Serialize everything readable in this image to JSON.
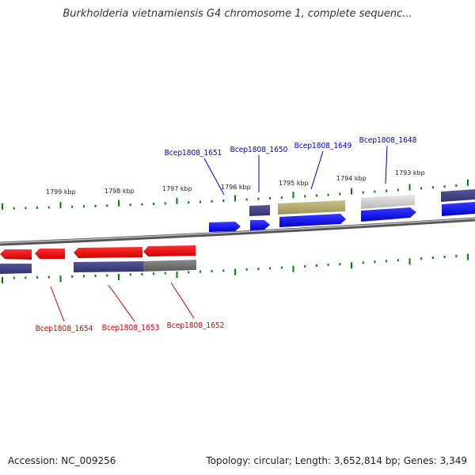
{
  "title": "Burkholderia vietnamiensis G4 chromosome 1, complete sequenc...",
  "footer": {
    "accession": "Accession: NC_009256",
    "topology": "Topology: circular; Length: 3,652,814 bp; Genes: 3,349"
  },
  "colors": {
    "forward_gene": "#0000ff",
    "reverse_gene": "#ff0000",
    "forward_label": "#0000bb",
    "reverse_label": "#cc0000",
    "tick": "#008000",
    "backbone": "#888888"
  },
  "kbp_ticks": [
    "1799 kbp",
    "1798 kbp",
    "1797 kbp",
    "1796 kbp",
    "1795 kbp",
    "1794 kbp",
    "1793 kbp"
  ],
  "forward_labels": [
    "Bcep1808_1651",
    "Bcep1808_1650",
    "Bcep1808_1649",
    "Bcep1808_1648"
  ],
  "reverse_labels": [
    "Bcep1808_1654",
    "Bcep1808_1653",
    "Bcep1808_1652"
  ]
}
